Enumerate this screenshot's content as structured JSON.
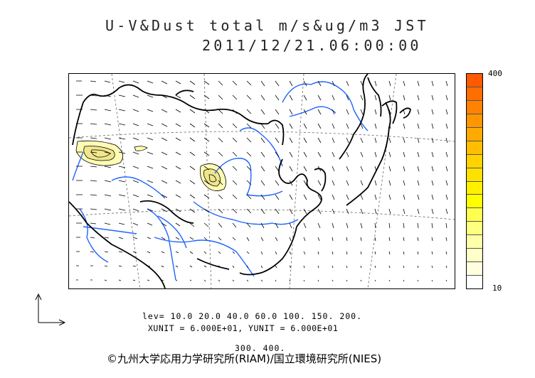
{
  "header": {
    "title": "U-V&Dust total m/s&ug/m3 JST",
    "datetime": "2011/12/21.06:00:00"
  },
  "colorbar": {
    "max_label": "400",
    "min_label": "10",
    "colors": [
      "#ff5a00",
      "#ff6e00",
      "#ff8200",
      "#ff9600",
      "#ffaa00",
      "#ffbe00",
      "#ffd200",
      "#ffe100",
      "#fff000",
      "#ffff00",
      "#ffff50",
      "#ffff80",
      "#ffffa8",
      "#ffffc8",
      "#ffffe0",
      "#ffffff"
    ]
  },
  "levels": {
    "line1": "lev= 10.0 20.0 40.0 60.0 100. 150. 200.",
    "line2": "300. 400."
  },
  "units": "XUNIT = 6.000E+01, YUNIT = 6.000E+01",
  "copyright": "©九州大学応用力学研究所(RIAM)/国立環境研究所(NIES)",
  "map": {
    "coastline_color": "#000000",
    "river_color": "#1e64ff",
    "grid_color": "#666666",
    "dust_fill_colors": [
      "#fffcb4",
      "#f0e68c"
    ]
  }
}
